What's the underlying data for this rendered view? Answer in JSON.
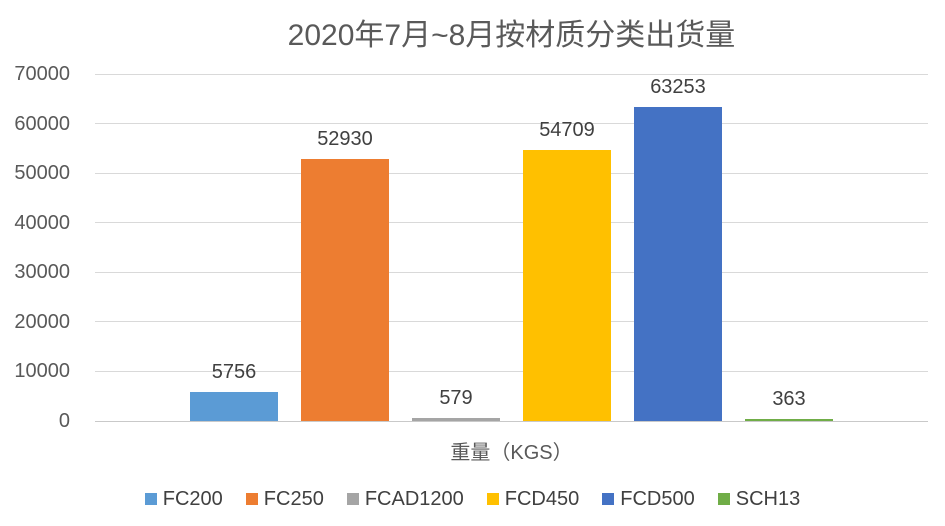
{
  "title": "2020年7月~8月按材质分类出货量",
  "chart_data": {
    "type": "bar",
    "title": "2020年7月~8月按材质分类出货量",
    "categories": [
      "重量（KGS）"
    ],
    "series": [
      {
        "name": "FC200",
        "values": [
          5756
        ],
        "color": "#5B9BD5"
      },
      {
        "name": "FC250",
        "values": [
          52930
        ],
        "color": "#ED7D31"
      },
      {
        "name": "FCAD1200",
        "values": [
          579
        ],
        "color": "#A5A5A5"
      },
      {
        "name": "FCD450",
        "values": [
          54709
        ],
        "color": "#FFC000"
      },
      {
        "name": "FCD500",
        "values": [
          63253
        ],
        "color": "#4472C4"
      },
      {
        "name": "SCH13",
        "values": [
          363
        ],
        "color": "#70AD47"
      }
    ],
    "xlabel": "重量（KGS）",
    "ylabel": "",
    "ylim": [
      0,
      70000
    ],
    "ytick_step": 10000,
    "yticks": [
      0,
      10000,
      20000,
      30000,
      40000,
      50000,
      60000,
      70000
    ],
    "grid": true,
    "legend_position": "bottom",
    "data_labels": true
  },
  "colors": {
    "background": "#FFFFFF",
    "gridline": "#D9D9D9",
    "axis_line": "#C9C9C9",
    "title_text": "#595959",
    "axis_text": "#595959",
    "data_label_text": "#404040",
    "legend_text": "#404040"
  }
}
